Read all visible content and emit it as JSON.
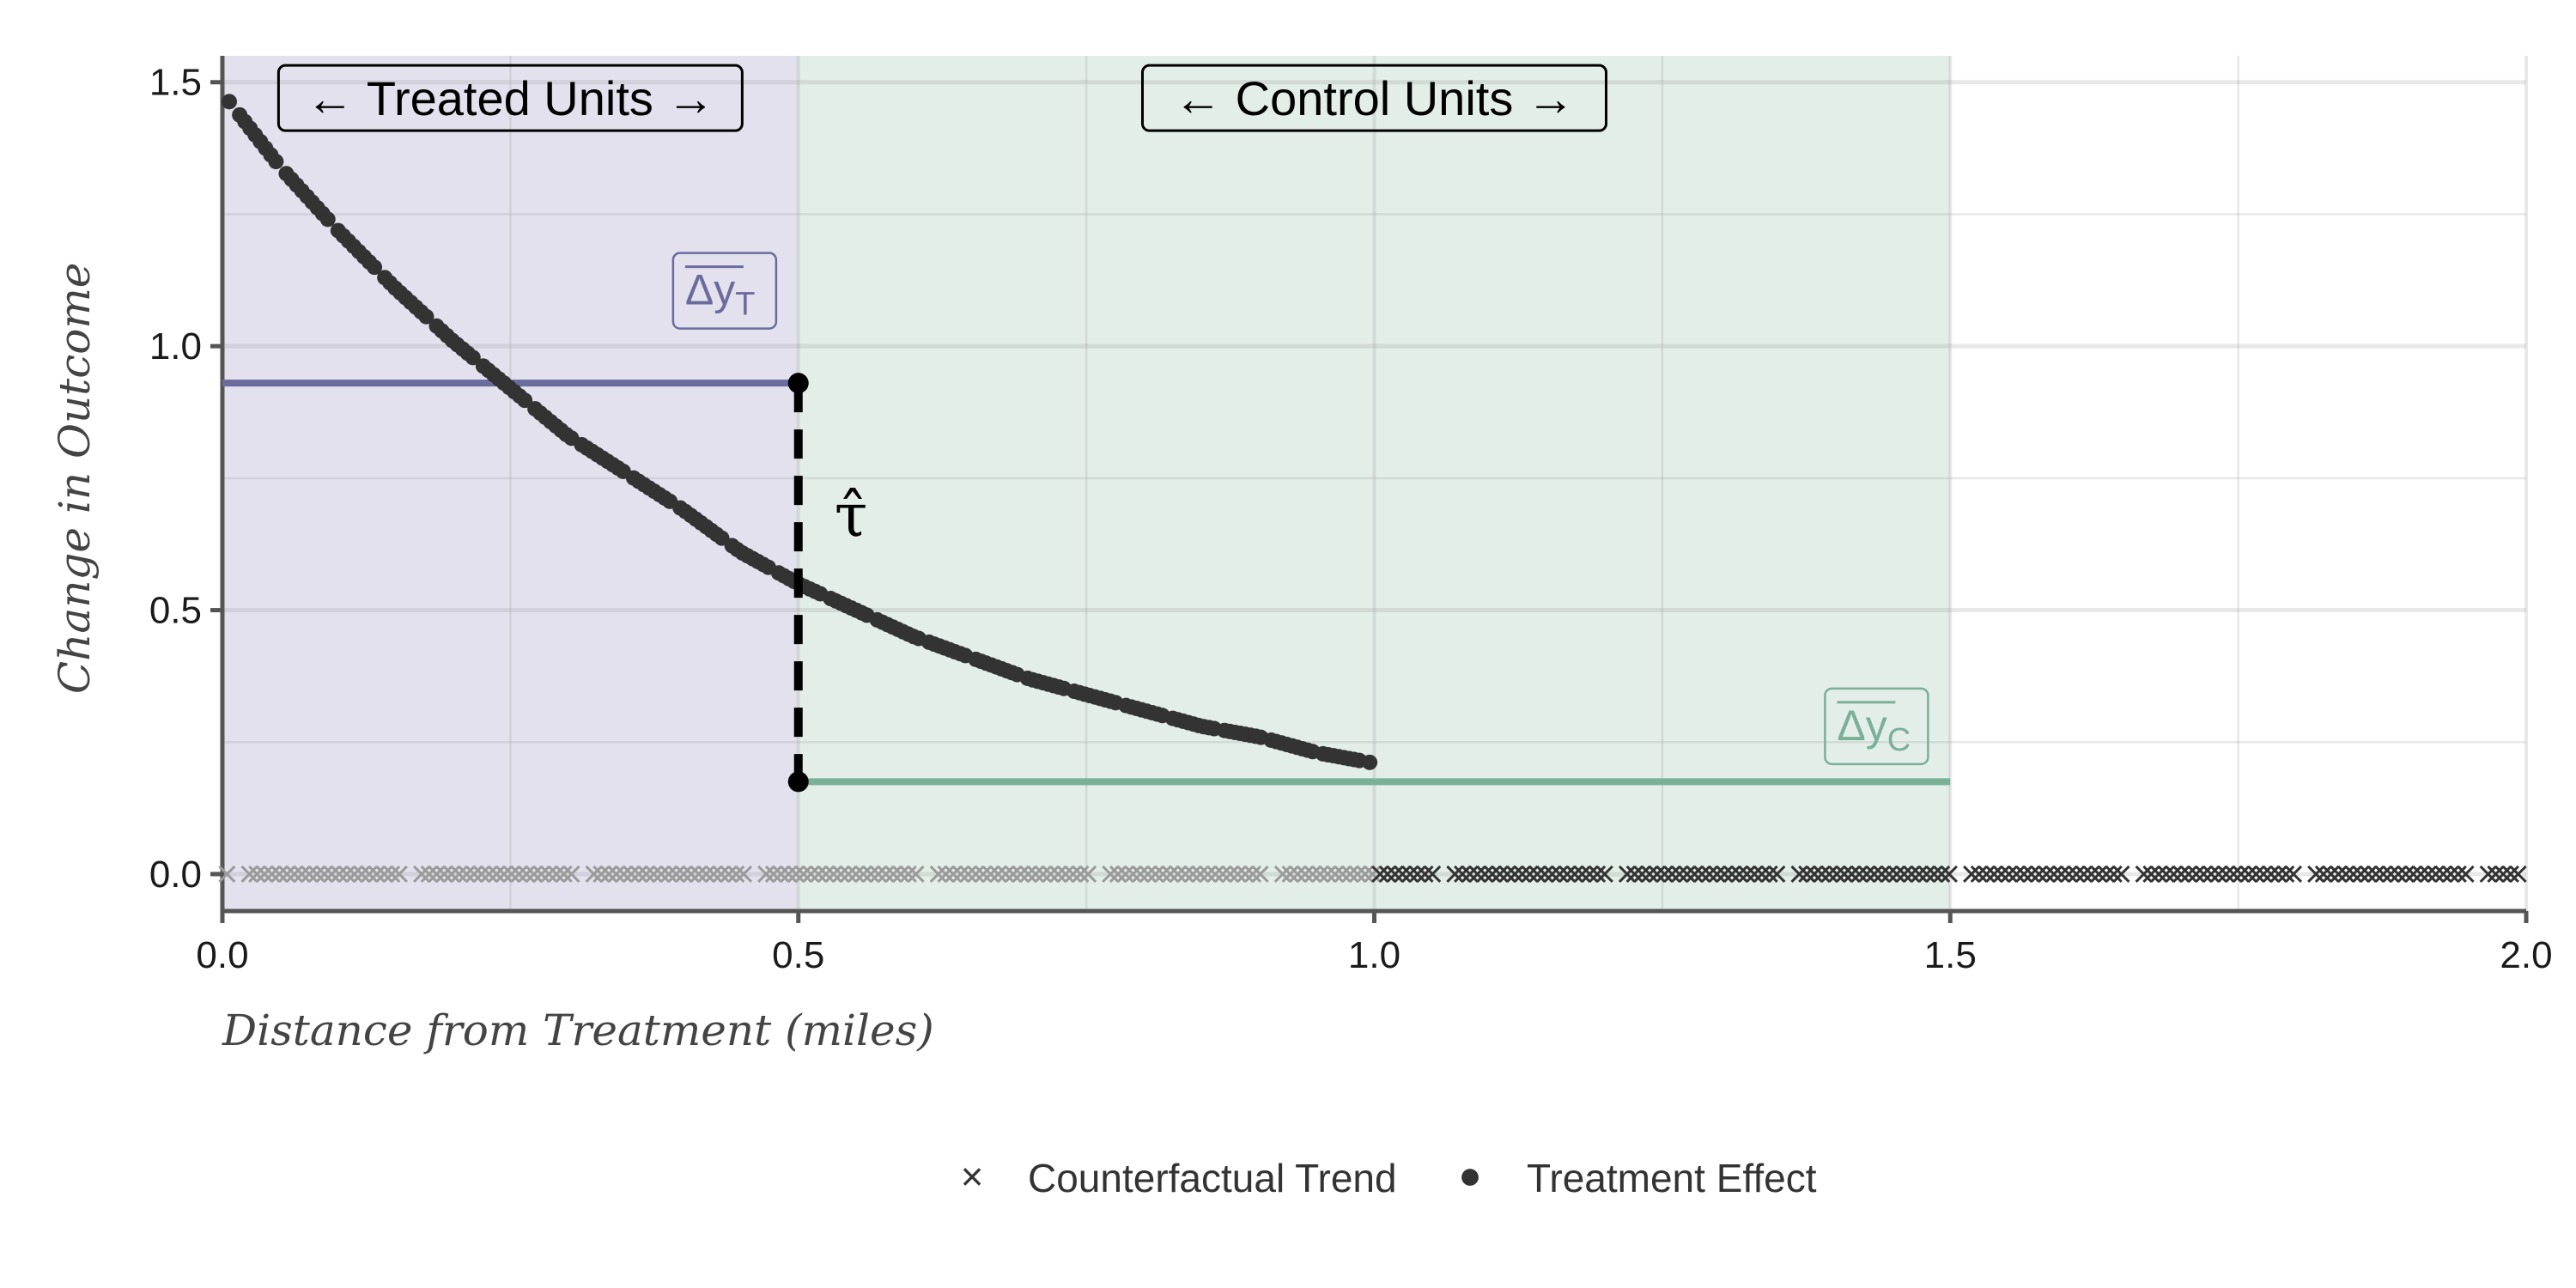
{
  "chart_data": {
    "type": "scatter",
    "xlabel": "Distance from Treatment (miles)",
    "ylabel": "Change in Outcome",
    "xlim": [
      0,
      2
    ],
    "ylim": [
      -0.07,
      1.55
    ],
    "x_ticks": [
      0.0,
      0.5,
      1.0,
      1.5,
      2.0
    ],
    "x_tick_labels": [
      "0.0",
      "0.5",
      "1.0",
      "1.5",
      "2.0"
    ],
    "y_ticks": [
      0.0,
      0.5,
      1.0,
      1.5
    ],
    "y_tick_labels": [
      "0.0",
      "0.5",
      "1.0",
      "1.5"
    ],
    "grid": true,
    "regions": [
      {
        "label": "← Treated Units →",
        "x_range": [
          0,
          0.5
        ],
        "color": "#e3e1ed"
      },
      {
        "label": "← Control Units →",
        "x_range": [
          0.5,
          1.5
        ],
        "color": "#e3eee8"
      }
    ],
    "series": [
      {
        "name": "Counterfactual Trend",
        "marker": "x",
        "color": "#9a9a9a",
        "color_far": "#333333",
        "x_range": [
          0,
          2
        ],
        "y_value": 0.0
      },
      {
        "name": "Treatment Effect",
        "marker": "dot",
        "color": "#333333",
        "x": [
          0.0,
          0.05,
          0.1,
          0.15,
          0.2,
          0.25,
          0.3,
          0.35,
          0.4,
          0.45,
          0.5,
          0.55,
          0.6,
          0.65,
          0.7,
          0.75,
          0.8,
          0.85,
          0.9,
          0.95,
          1.0
        ],
        "y": [
          1.48,
          1.34,
          1.22,
          1.11,
          1.01,
          0.92,
          0.83,
          0.76,
          0.69,
          0.61,
          0.55,
          0.5,
          0.45,
          0.41,
          0.37,
          0.34,
          0.31,
          0.28,
          0.26,
          0.23,
          0.21
        ]
      }
    ],
    "mean_lines": [
      {
        "label_main": "Δy",
        "label_sub": "T",
        "y": 0.93,
        "x_range": [
          0,
          0.5
        ],
        "color": "#6b6b9e"
      },
      {
        "label_main": "Δy",
        "label_sub": "C",
        "y": 0.175,
        "x_range": [
          0.5,
          1.5
        ],
        "color": "#7aaf98"
      }
    ],
    "estimate": {
      "label": "τ̂",
      "x": 0.5,
      "y_from": 0.175,
      "y_to": 0.93
    },
    "legend": {
      "position": "bottom",
      "items": [
        {
          "marker": "×",
          "label": "Counterfactual Trend"
        },
        {
          "marker": "●",
          "label": "Treatment Effect"
        }
      ]
    }
  }
}
